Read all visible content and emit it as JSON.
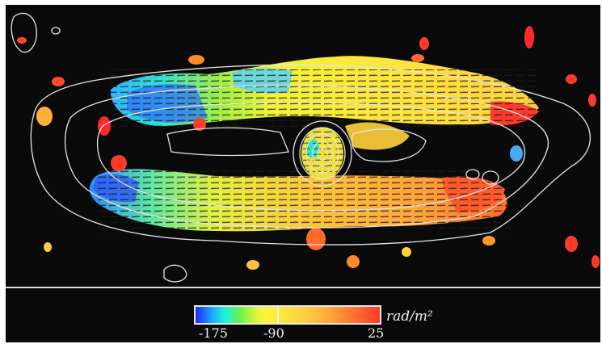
{
  "colorbar": {
    "min_label": "-175",
    "mid_label": "-90",
    "max_label": "25",
    "unit_label": "rad/m²"
  },
  "colors": {
    "background": "#0a0a0a",
    "contour": "#e6e6e6",
    "vector": "#1a1a1a"
  }
}
